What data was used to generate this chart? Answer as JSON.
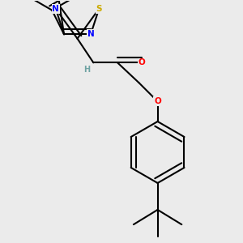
{
  "background_color": "#ebebeb",
  "atom_colors": {
    "C": "#000000",
    "H": "#6fa3a3",
    "N": "#0000ff",
    "O": "#ff0000",
    "S": "#ccaa00"
  },
  "bond_color": "#000000",
  "bond_width": 1.5
}
